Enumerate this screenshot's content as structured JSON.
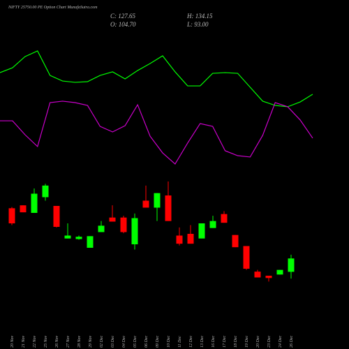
{
  "chart_data": {
    "type": "candlestick",
    "title": "NIFTY 25750.00 PE Option Chart MunafaSutra.com",
    "header": {
      "close": "C: 127.65",
      "high": "H: 134.15",
      "open": "O: 104.70",
      "low": "L: 93.00"
    },
    "categories": [
      "20 Nov",
      "21 Nov",
      "22 Nov",
      "25 Nov",
      "26 Nov",
      "27 Nov",
      "28 Nov",
      "29 Nov",
      "02 Dec",
      "03 Dec",
      "04 Dec",
      "05 Dec",
      "06 Dec",
      "09 Dec",
      "10 Dec",
      "11 Dec",
      "12 Dec",
      "13 Dec",
      "16 Dec",
      "17 Dec",
      "18 Dec",
      "19 Dec",
      "20 Dec",
      "23 Dec",
      "24 Dec",
      "26 Dec"
    ],
    "open": [
      214,
      219,
      206,
      233,
      218,
      162,
      161,
      146,
      173,
      198,
      198,
      152,
      227,
      215,
      236,
      167,
      170,
      162,
      180,
      204,
      168,
      149,
      105,
      98,
      100,
      104.7
    ],
    "high": [
      216,
      219,
      248,
      256,
      218,
      188,
      167,
      166,
      192,
      219,
      201,
      205,
      253,
      240,
      260,
      181,
      185,
      188,
      201,
      209,
      168,
      149,
      108,
      98,
      108,
      134.15
    ],
    "low": [
      185,
      207,
      206,
      227,
      181,
      162,
      160,
      146,
      173,
      191,
      171,
      143,
      215,
      192,
      192,
      150,
      153,
      162,
      180,
      189,
      147,
      108,
      95,
      88,
      100,
      93.0
    ],
    "close": [
      188,
      207,
      239,
      253,
      182,
      167,
      165,
      166,
      184,
      191,
      173,
      197,
      215,
      240,
      192,
      153,
      153,
      188,
      192,
      189,
      147,
      110,
      95,
      94,
      108,
      127.65
    ],
    "up_color": "#00ff00",
    "down_color": "#ff0000",
    "ylim": [
      80,
      272
    ],
    "indicators": {
      "ylim": [
        0,
        100
      ],
      "series": [
        {
          "color": "#00ff00",
          "values": [
            76.8,
            80.5,
            88.9,
            93.2,
            74.7,
            70.5,
            69.5,
            70.0,
            74.7,
            77.4,
            72.1,
            78.4,
            83.7,
            89.5,
            77.4,
            66.8,
            66.8,
            76.3,
            76.8,
            76.3,
            65.8,
            55.3,
            52.1,
            51.1,
            54.7,
            60.5
          ]
        },
        {
          "color": "#cc00cc",
          "values": [
            40.5,
            40.5,
            30.0,
            21.1,
            54.2,
            55.3,
            54.2,
            52.1,
            36.3,
            32.1,
            36.8,
            52.6,
            28.9,
            16.3,
            7.9,
            23.7,
            38.4,
            36.3,
            17.9,
            14.2,
            13.2,
            29.5,
            54.2,
            51.1,
            41.1,
            27.4
          ]
        }
      ]
    }
  }
}
